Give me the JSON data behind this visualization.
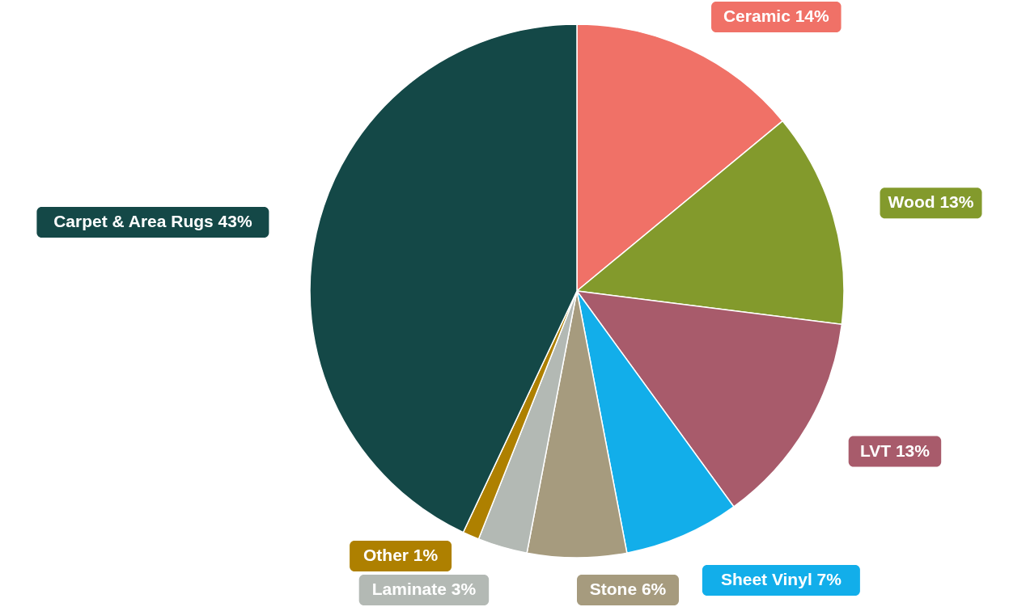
{
  "chart_data": {
    "type": "pie",
    "categories": [
      "Ceramic",
      "Wood",
      "LVT",
      "Sheet Vinyl",
      "Stone",
      "Laminate",
      "Other",
      "Carpet & Area Rugs"
    ],
    "values": [
      14,
      13,
      13,
      7,
      6,
      3,
      1,
      43
    ],
    "value_labels": [
      "14%",
      "13%",
      "13%",
      "7%",
      "6%",
      "3%",
      "1%",
      "43%"
    ],
    "colors": [
      "#f07167",
      "#839a2c",
      "#a85b6b",
      "#12aeea",
      "#a69b7e",
      "#b3b9b4",
      "#ae8000",
      "#144847"
    ]
  }
}
